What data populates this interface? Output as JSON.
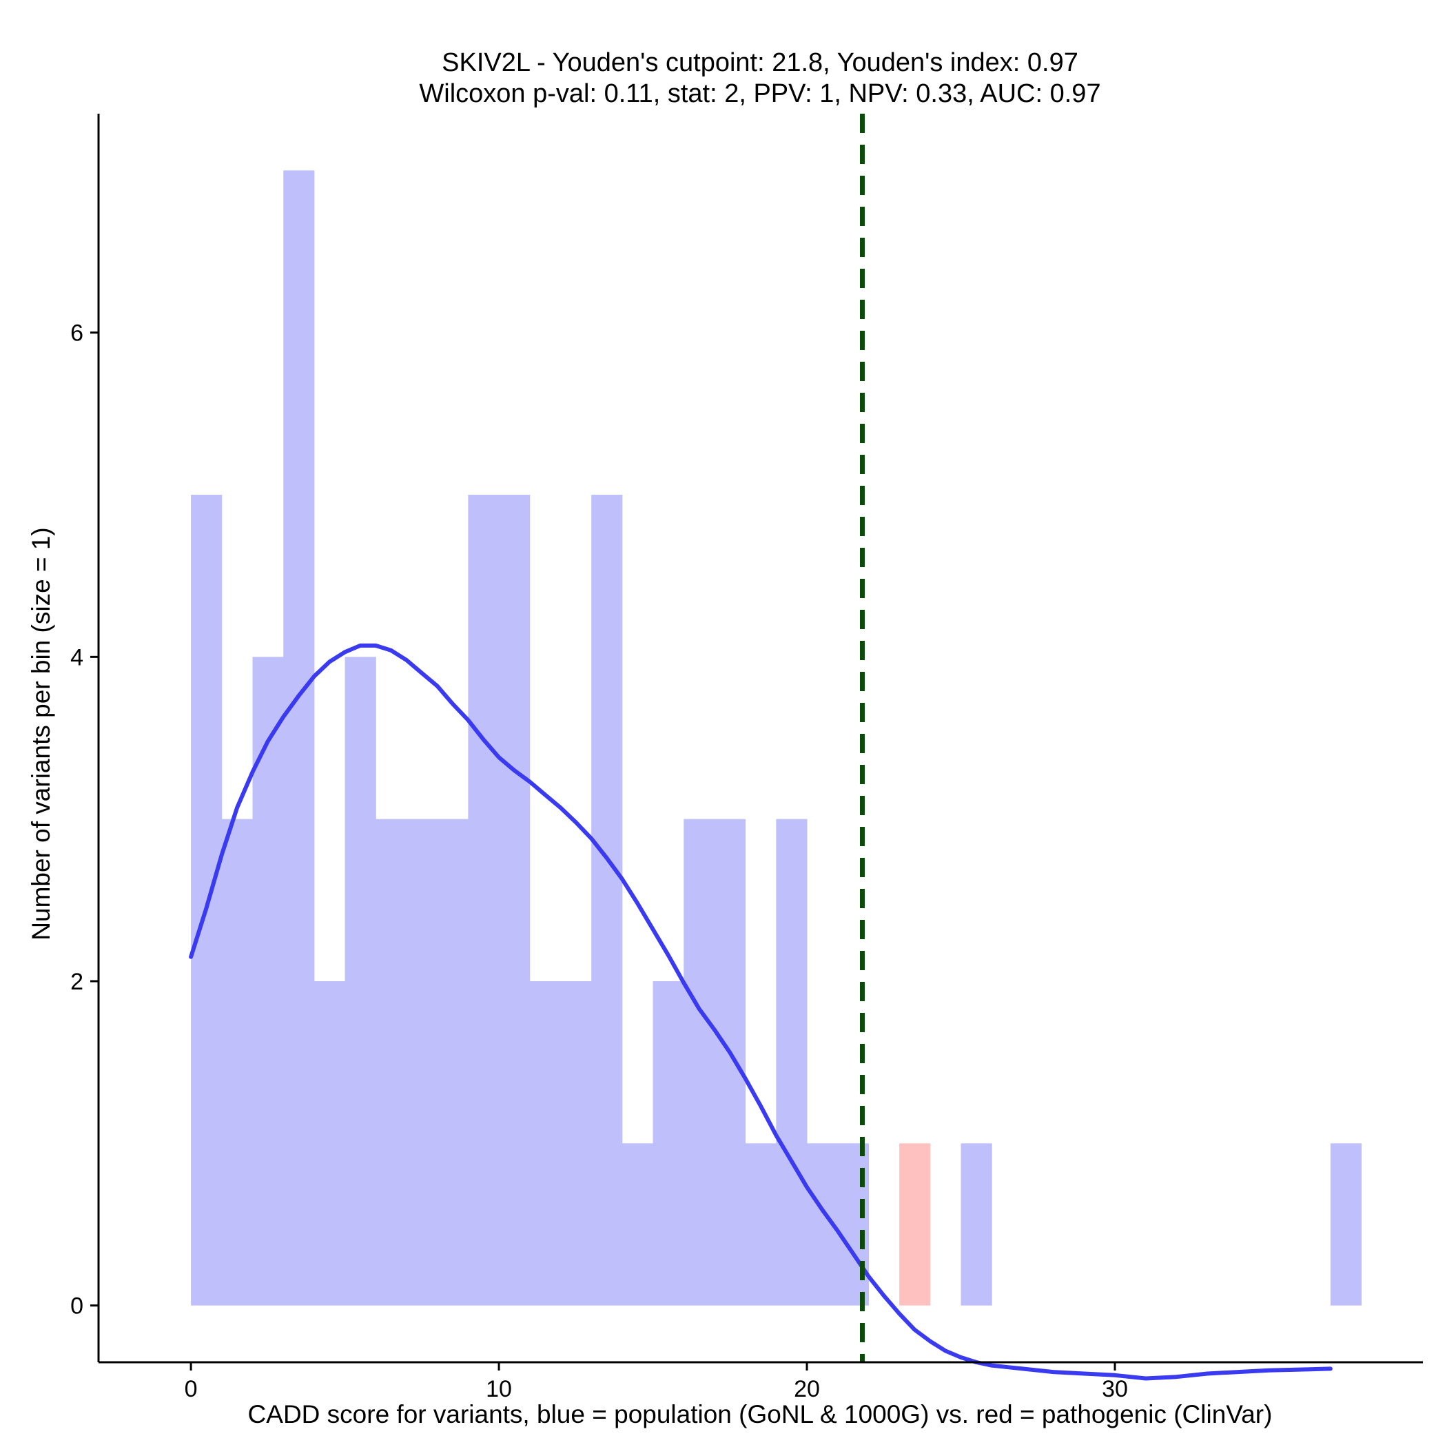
{
  "chart_data": {
    "type": "bar",
    "title_line1": "SKIV2L - Youden's cutpoint: 21.8, Youden's index: 0.97",
    "title_line2": "Wilcoxon p-val: 0.11, stat: 2, PPV: 1, NPV: 0.33, AUC: 0.97",
    "xlabel": "CADD score for variants, blue = population (GoNL & 1000G) vs. red = pathogenic (ClinVar)",
    "ylabel": "Number of variants per bin (size = 1)",
    "xlim": [
      -3,
      40
    ],
    "ylim": [
      -0.35,
      7.35
    ],
    "xticks": [
      0,
      10,
      20,
      30
    ],
    "yticks": [
      0,
      2,
      4,
      6
    ],
    "bin_width": 1,
    "series": [
      {
        "name": "population",
        "color": "#bfbffc",
        "bins": [
          {
            "x": 0,
            "count": 5
          },
          {
            "x": 1,
            "count": 3
          },
          {
            "x": 2,
            "count": 4
          },
          {
            "x": 3,
            "count": 7
          },
          {
            "x": 4,
            "count": 2
          },
          {
            "x": 5,
            "count": 4
          },
          {
            "x": 6,
            "count": 3
          },
          {
            "x": 7,
            "count": 3
          },
          {
            "x": 8,
            "count": 3
          },
          {
            "x": 9,
            "count": 5
          },
          {
            "x": 10,
            "count": 5
          },
          {
            "x": 11,
            "count": 2
          },
          {
            "x": 12,
            "count": 2
          },
          {
            "x": 13,
            "count": 5
          },
          {
            "x": 14,
            "count": 1
          },
          {
            "x": 15,
            "count": 2
          },
          {
            "x": 16,
            "count": 3
          },
          {
            "x": 17,
            "count": 3
          },
          {
            "x": 18,
            "count": 1
          },
          {
            "x": 19,
            "count": 3
          },
          {
            "x": 20,
            "count": 1
          },
          {
            "x": 21,
            "count": 1
          },
          {
            "x": 25,
            "count": 1
          },
          {
            "x": 37,
            "count": 1
          }
        ]
      },
      {
        "name": "pathogenic",
        "color": "#ffc0c0",
        "bins": [
          {
            "x": 23,
            "count": 1
          }
        ]
      }
    ],
    "density": {
      "color": "#3a3af0",
      "points": [
        [
          0,
          2.15
        ],
        [
          0.5,
          2.45
        ],
        [
          1,
          2.78
        ],
        [
          1.5,
          3.07
        ],
        [
          2,
          3.29
        ],
        [
          2.5,
          3.48
        ],
        [
          3,
          3.63
        ],
        [
          3.5,
          3.76
        ],
        [
          4,
          3.88
        ],
        [
          4.5,
          3.97
        ],
        [
          5,
          4.03
        ],
        [
          5.5,
          4.07
        ],
        [
          6,
          4.07
        ],
        [
          6.5,
          4.04
        ],
        [
          7,
          3.98
        ],
        [
          7.5,
          3.9
        ],
        [
          8,
          3.82
        ],
        [
          8.5,
          3.71
        ],
        [
          9,
          3.61
        ],
        [
          9.5,
          3.49
        ],
        [
          10,
          3.38
        ],
        [
          10.5,
          3.3
        ],
        [
          11,
          3.23
        ],
        [
          11.5,
          3.15
        ],
        [
          12,
          3.07
        ],
        [
          12.5,
          2.98
        ],
        [
          13,
          2.88
        ],
        [
          13.5,
          2.76
        ],
        [
          14,
          2.63
        ],
        [
          14.5,
          2.48
        ],
        [
          15,
          2.32
        ],
        [
          15.5,
          2.16
        ],
        [
          16,
          1.99
        ],
        [
          16.5,
          1.83
        ],
        [
          17,
          1.7
        ],
        [
          17.5,
          1.56
        ],
        [
          18,
          1.4
        ],
        [
          18.5,
          1.23
        ],
        [
          19,
          1.05
        ],
        [
          19.5,
          0.89
        ],
        [
          20,
          0.73
        ],
        [
          20.5,
          0.59
        ],
        [
          21,
          0.46
        ],
        [
          21.5,
          0.32
        ],
        [
          22,
          0.18
        ],
        [
          22.5,
          0.06
        ],
        [
          23,
          -0.05
        ],
        [
          23.5,
          -0.15
        ],
        [
          24,
          -0.22
        ],
        [
          24.5,
          -0.28
        ],
        [
          25,
          -0.32
        ],
        [
          25.5,
          -0.35
        ],
        [
          26,
          -0.37
        ],
        [
          27,
          -0.39
        ],
        [
          28,
          -0.41
        ],
        [
          29,
          -0.42
        ],
        [
          30,
          -0.43
        ],
        [
          31,
          -0.45
        ],
        [
          32,
          -0.44
        ],
        [
          33,
          -0.42
        ],
        [
          34,
          -0.41
        ],
        [
          35,
          -0.4
        ],
        [
          36,
          -0.395
        ],
        [
          37,
          -0.39
        ]
      ]
    },
    "cutpoint": {
      "x": 21.8,
      "color": "#0b4a0b"
    }
  }
}
